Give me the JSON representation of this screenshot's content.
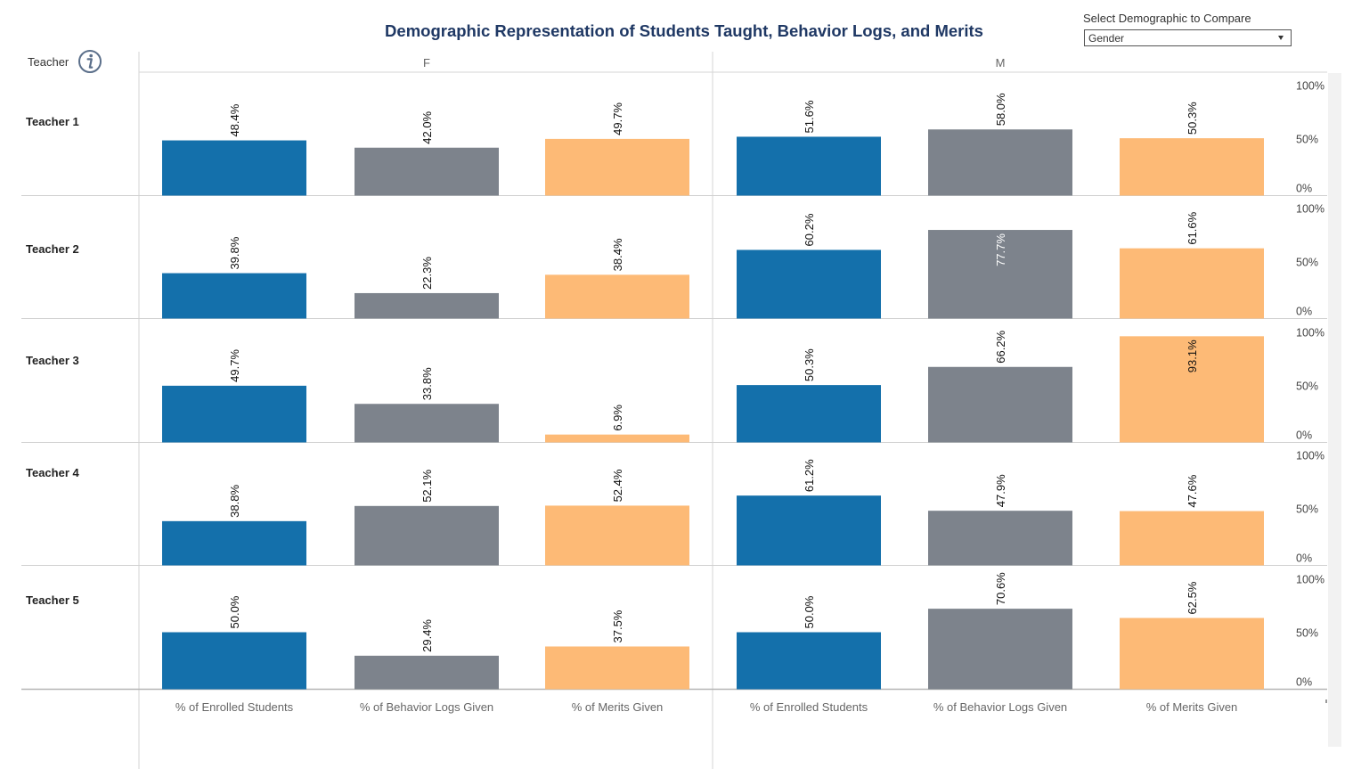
{
  "header": {
    "title": "Demographic Representation of Students Taught, Behavior Logs, and Merits",
    "teacher_label": "Teacher"
  },
  "filter": {
    "label": "Select Demographic to Compare",
    "value": "Gender"
  },
  "colors": {
    "enrolled": "#1470ab",
    "behavior": "#7d838c",
    "merits": "#fdba76"
  },
  "icons": {
    "info": "info-circle-icon",
    "dropdown": "chevron-down-icon"
  },
  "chart_data": {
    "type": "bar",
    "columns": [
      "F",
      "M"
    ],
    "measures": [
      "% of Enrolled Students",
      "% of Behavior Logs Given",
      "% of Merits Given"
    ],
    "rows": [
      "Teacher 1",
      "Teacher 2",
      "Teacher 3",
      "Teacher 4",
      "Teacher 5"
    ],
    "y_ticks": [
      "100%",
      "50%",
      "0%"
    ],
    "ylim": [
      0,
      100
    ],
    "grid": false,
    "values": {
      "Teacher 1": {
        "F": [
          48.4,
          42.0,
          49.7
        ],
        "M": [
          51.6,
          58.0,
          50.3
        ]
      },
      "Teacher 2": {
        "F": [
          39.8,
          22.3,
          38.4
        ],
        "M": [
          60.2,
          77.7,
          61.6
        ]
      },
      "Teacher 3": {
        "F": [
          49.7,
          33.8,
          6.9
        ],
        "M": [
          50.3,
          66.2,
          93.1
        ]
      },
      "Teacher 4": {
        "F": [
          38.8,
          52.1,
          52.4
        ],
        "M": [
          61.2,
          47.9,
          47.6
        ]
      },
      "Teacher 5": {
        "F": [
          50.0,
          29.4,
          37.5
        ],
        "M": [
          50.0,
          70.6,
          62.5
        ]
      }
    }
  }
}
